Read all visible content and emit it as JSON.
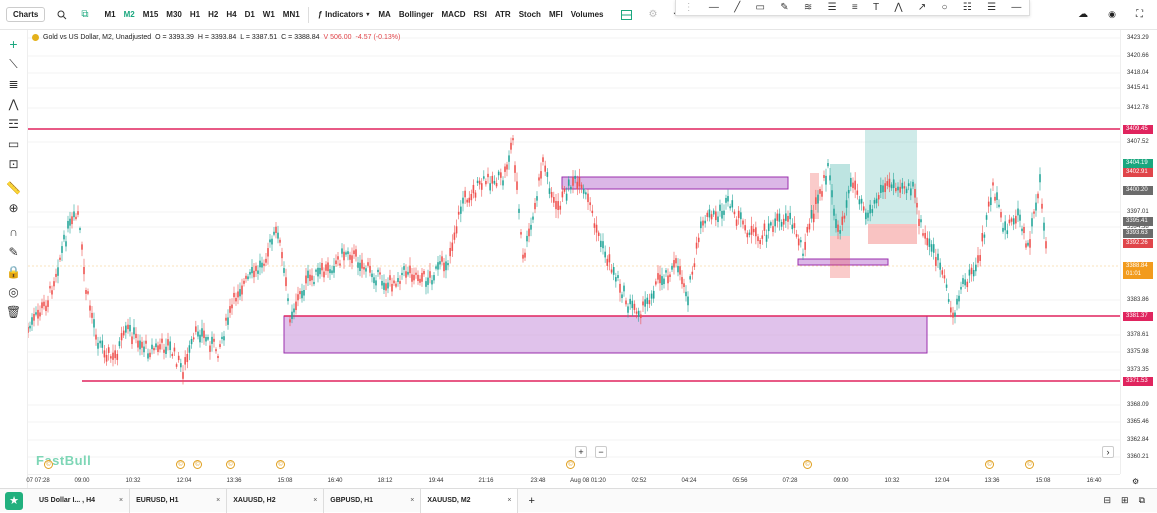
{
  "toolbar": {
    "charts_label": "Charts",
    "timeframes": [
      "M1",
      "M2",
      "M15",
      "M30",
      "H1",
      "H2",
      "H4",
      "D1",
      "W1",
      "MN1"
    ],
    "active_timeframe": "M2",
    "indicators_label": "Indicators",
    "indicator_items": [
      "MA",
      "Bollinger",
      "MACD",
      "RSI",
      "ATR",
      "Stoch",
      "MFI",
      "Volumes"
    ]
  },
  "legend": {
    "title": "Gold vs US Dollar, M2, Unadjusted",
    "open": "O = 3393.39",
    "high": "H = 3393.84",
    "low": "L = 3387.51",
    "close": "C = 3388.84",
    "volume": "V 506.00",
    "change": "-4.57 (-0.13%)"
  },
  "brand": "FastBull",
  "yaxis": {
    "ticks": [
      "3423.29",
      "3420.66",
      "3418.04",
      "3415.41",
      "3412.78",
      "3407.52",
      "3397.01",
      "3394.38",
      "3383.86",
      "3378.61",
      "3375.98",
      "3373.35",
      "3368.09",
      "3365.46",
      "3362.84",
      "3360.21"
    ],
    "labels": [
      {
        "text": "3409.45",
        "color": "#e0245e"
      },
      {
        "text": "3404.19",
        "color": "#1aa77e"
      },
      {
        "text": "3402.91",
        "color": "#e0454a"
      },
      {
        "text": "3400.20",
        "color": "#6b6b6b"
      },
      {
        "text": "3395.41",
        "color": "#6b6b6b"
      },
      {
        "text": "3393.63",
        "color": "#6b6b6b"
      },
      {
        "text": "3392.26",
        "color": "#e0454a"
      },
      {
        "text": "3388.84",
        "color": "#f29b1d"
      },
      {
        "text": "01:01",
        "color": "#f29b1d"
      },
      {
        "text": "3381.37",
        "color": "#e0245e"
      },
      {
        "text": "3371.53",
        "color": "#e0245e"
      }
    ]
  },
  "xaxis": {
    "ticks": [
      "07 07:28",
      "09:00",
      "10:32",
      "12:04",
      "13:36",
      "15:08",
      "16:40",
      "18:12",
      "19:44",
      "21:16",
      "23:48",
      "Aug 08 01:20",
      "02:52",
      "04:24",
      "05:56",
      "07:28",
      "09:00",
      "10:32",
      "12:04",
      "13:36",
      "15:08",
      "16:40"
    ]
  },
  "tabs": [
    {
      "label": "US Dollar I... , H4",
      "active": false
    },
    {
      "label": "EURUSD, H1",
      "active": false
    },
    {
      "label": "XAUUSD, H2",
      "active": false
    },
    {
      "label": "GBPUSD, H1",
      "active": false
    },
    {
      "label": "XAUUSD, M2",
      "active": true
    }
  ],
  "colors": {
    "accent": "#1aa77e",
    "level_line": "#e0245e",
    "zone_fill": "#cc99dd",
    "zone_border": "#9b2fae",
    "up": "#26a69a",
    "down": "#ef5350"
  }
}
